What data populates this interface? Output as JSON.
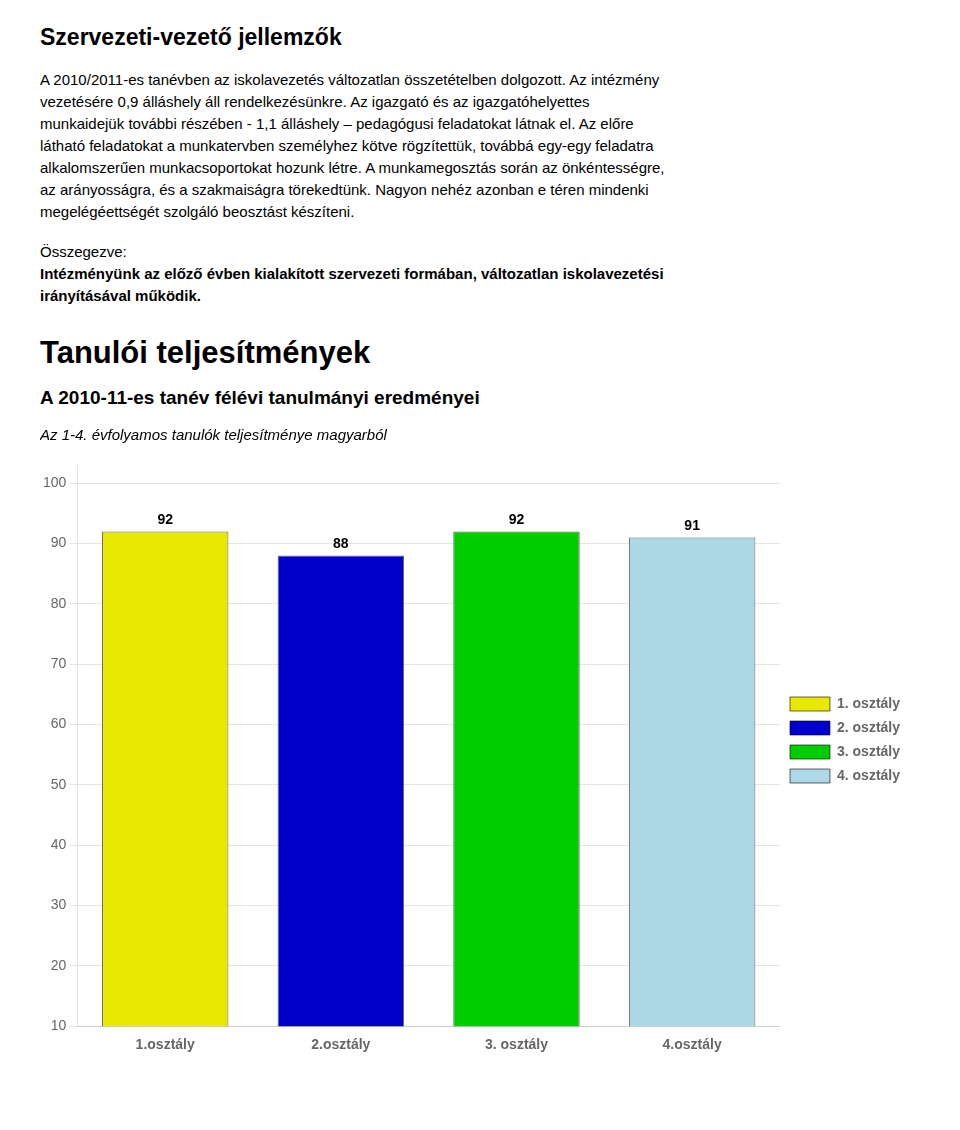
{
  "page": {
    "title": "Szervezeti-vezető jellemzők",
    "body": [
      "A 2010/2011-es tanévben az iskolavezetés változatlan összetételben dolgozott. Az intézmény",
      "vezetésére 0,9 álláshely áll rendelkezésünkre. Az igazgató és az igazgatóhelyettes",
      "munkaidejük további részében - 1,1 álláshely – pedagógusi feladatokat látnak el. Az előre",
      "látható feladatokat a munkatervben személyhez kötve rögzítettük, továbbá egy-egy feladatra",
      "alkalomszerűen munkacsoportokat hozunk létre.  A munkamegosztás során az önkéntességre,",
      "az arányosságra, és a szakmaiságra törekedtünk. Nagyon nehéz azonban e téren mindenki",
      "megelégéettségét szolgáló beosztást készíteni."
    ],
    "summary_label": "Összegezve:",
    "summary": [
      "Intézményünk az előző évben kialakított szervezeti formában, változatlan iskolavezetési",
      "irányításával működik."
    ],
    "section_title": "Tanulói teljesítmények",
    "subsection_title": "A 2010-11-es tanév félévi tanulmányi eredményei"
  },
  "chart_data": {
    "type": "bar",
    "title": "Az 1-4. évfolyamos tanulók teljesítménye magyarból",
    "categories": [
      "1.osztály",
      "2.osztály",
      "3. osztály",
      "4.osztály"
    ],
    "series": [
      {
        "name": "1. osztály",
        "color": "#e8e800",
        "values": [
          92,
          null,
          null,
          null
        ]
      },
      {
        "name": "2. osztály",
        "color": "#0000cc",
        "values": [
          null,
          88,
          null,
          null
        ]
      },
      {
        "name": "3. osztály",
        "color": "#00cc00",
        "values": [
          null,
          null,
          92,
          null
        ]
      },
      {
        "name": "4. osztály",
        "color": "#add8e6",
        "values": [
          null,
          null,
          null,
          91
        ]
      }
    ],
    "ylim": [
      10,
      103
    ],
    "yticks": [
      10,
      20,
      30,
      40,
      50,
      60,
      70,
      80,
      90,
      100
    ],
    "grid": true,
    "legend": "right",
    "data_labels": true
  }
}
